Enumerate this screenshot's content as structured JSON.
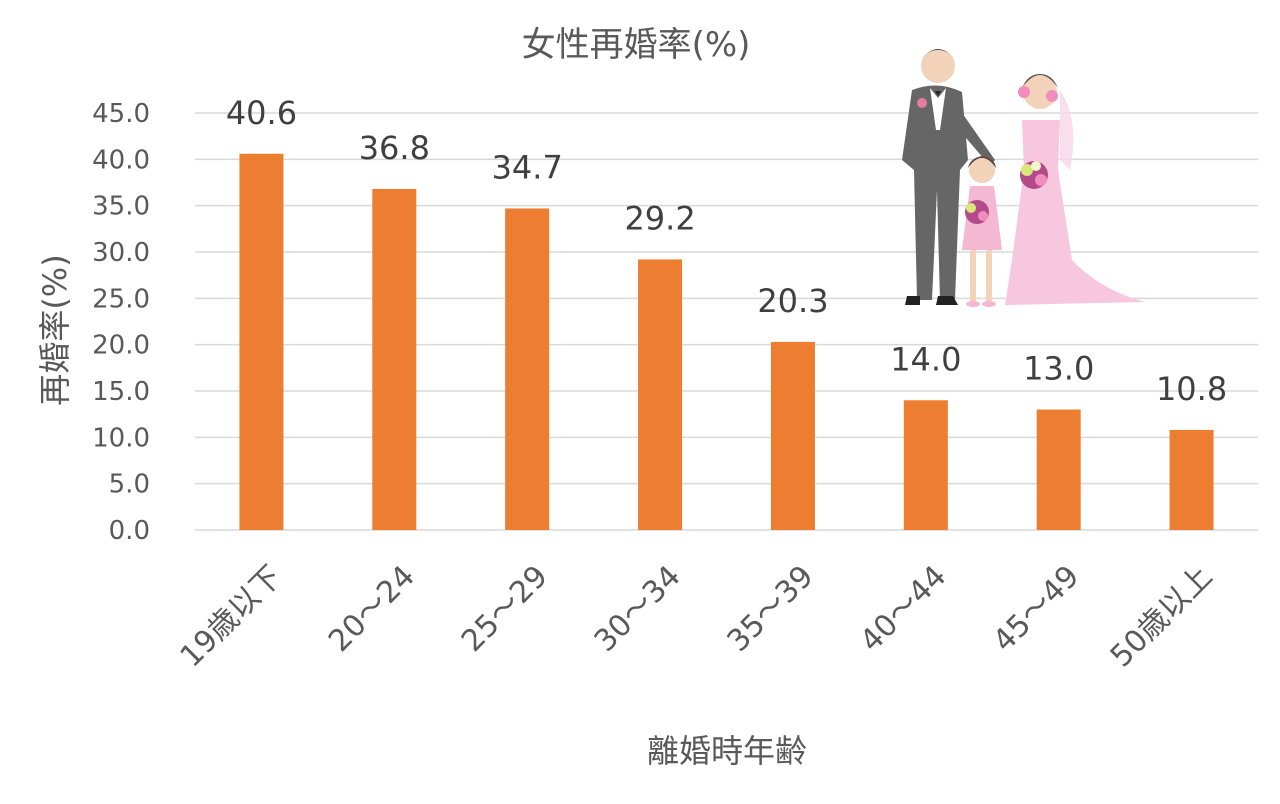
{
  "chart_data": {
    "type": "bar",
    "title": "女性再婚率(%)",
    "xlabel": "離婚時年齢",
    "ylabel": "再婚率(%)",
    "categories": [
      "19歳以下",
      "20～24",
      "25～29",
      "30～34",
      "35～39",
      "40～44",
      "45～49",
      "50歳以上"
    ],
    "values": [
      40.6,
      36.8,
      34.7,
      29.2,
      20.3,
      14.0,
      13.0,
      10.8
    ],
    "value_labels": [
      "40.6",
      "36.8",
      "34.7",
      "29.2",
      "20.3",
      "14.0",
      "13.0",
      "10.8"
    ],
    "yticks": [
      "0.0",
      "5.0",
      "10.0",
      "15.0",
      "20.0",
      "25.0",
      "30.0",
      "35.0",
      "40.0",
      "45.0"
    ],
    "ylim": [
      0,
      45
    ],
    "grid": true,
    "legend": "none",
    "bar_color": "#ed7d31",
    "illustration": "wedding-family-icon"
  }
}
